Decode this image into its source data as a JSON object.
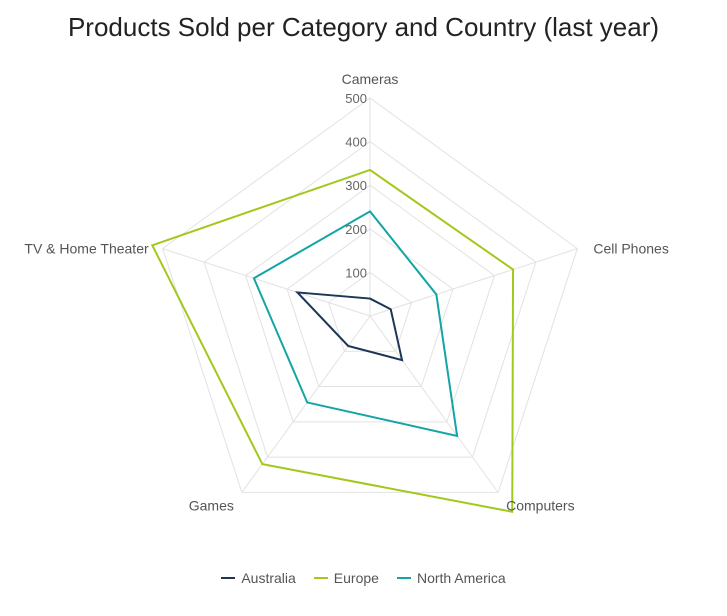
{
  "chart_data": {
    "type": "radar",
    "title": "Products Sold per Category and Country (last year)",
    "categories": [
      "Cameras",
      "Cell Phones",
      "Computers",
      "Games",
      "TV & Home Theater"
    ],
    "rlim": [
      0,
      500
    ],
    "rticks": [
      100,
      200,
      300,
      400,
      500
    ],
    "grid": true,
    "legend_position": "bottom",
    "series": [
      {
        "name": "Australia",
        "color": "#1d3557",
        "values": [
          40,
          50,
          125,
          85,
          175
        ]
      },
      {
        "name": "Europe",
        "color": "#a3c81c",
        "values": [
          335,
          345,
          555,
          420,
          525
        ]
      },
      {
        "name": "North America",
        "color": "#13a5a6",
        "values": [
          240,
          160,
          340,
          245,
          280
        ]
      }
    ]
  }
}
